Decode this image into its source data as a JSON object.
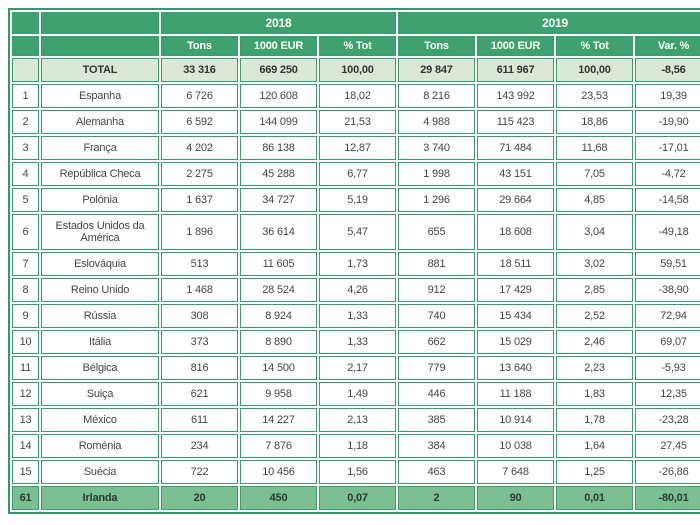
{
  "chart_data": {
    "type": "table",
    "description": "Country trade statistics table comparing 2018 and 2019 (tons, value in 1000 EUR, share of total, and variation percentage)",
    "year_groups": {
      "y2018": "2018",
      "y2019": "2019"
    },
    "sub_headers": {
      "tons": "Tons",
      "eur": "1000 EUR",
      "pct": "% Tot",
      "var": "Var. %"
    },
    "total": {
      "rank": "",
      "label": "TOTAL",
      "values": [
        "33 316",
        "669 250",
        "100,00",
        "29 847",
        "611 967",
        "100,00",
        "-8,56"
      ]
    },
    "rows": [
      {
        "rank": "1",
        "country": "Espanha",
        "values": [
          "6 726",
          "120 608",
          "18,02",
          "8 216",
          "143 992",
          "23,53",
          "19,39"
        ]
      },
      {
        "rank": "2",
        "country": "Alemanha",
        "values": [
          "6 592",
          "144 099",
          "21,53",
          "4 988",
          "115 423",
          "18,86",
          "-19,90"
        ]
      },
      {
        "rank": "3",
        "country": "França",
        "values": [
          "4 202",
          "86 138",
          "12,87",
          "3 740",
          "71 484",
          "11,68",
          "-17,01"
        ]
      },
      {
        "rank": "4",
        "country": "República Checa",
        "values": [
          "2 275",
          "45 288",
          "6,77",
          "1 998",
          "43 151",
          "7,05",
          "-4,72"
        ]
      },
      {
        "rank": "5",
        "country": "Polónia",
        "values": [
          "1 637",
          "34 727",
          "5,19",
          "1 296",
          "29 664",
          "4,85",
          "-14,58"
        ]
      },
      {
        "rank": "6",
        "country": "Estados Unidos da América",
        "values": [
          "1 896",
          "36 614",
          "5,47",
          "655",
          "18 608",
          "3,04",
          "-49,18"
        ],
        "tall": true
      },
      {
        "rank": "7",
        "country": "Eslováquia",
        "values": [
          "513",
          "11 605",
          "1,73",
          "881",
          "18 511",
          "3,02",
          "59,51"
        ]
      },
      {
        "rank": "8",
        "country": "Reino Unido",
        "values": [
          "1 468",
          "28 524",
          "4,26",
          "912",
          "17 429",
          "2,85",
          "-38,90"
        ]
      },
      {
        "rank": "9",
        "country": "Rússia",
        "values": [
          "308",
          "8 924",
          "1,33",
          "740",
          "15 434",
          "2,52",
          "72,94"
        ]
      },
      {
        "rank": "10",
        "country": "Itália",
        "values": [
          "373",
          "8 890",
          "1,33",
          "662",
          "15 029",
          "2,46",
          "69,07"
        ]
      },
      {
        "rank": "11",
        "country": "Bélgica",
        "values": [
          "816",
          "14 500",
          "2,17",
          "779",
          "13 640",
          "2,23",
          "-5,93"
        ]
      },
      {
        "rank": "12",
        "country": "Suiça",
        "values": [
          "621",
          "9 958",
          "1,49",
          "446",
          "11 188",
          "1,83",
          "12,35"
        ]
      },
      {
        "rank": "13",
        "country": "México",
        "values": [
          "611",
          "14 227",
          "2,13",
          "385",
          "10 914",
          "1,78",
          "-23,28"
        ]
      },
      {
        "rank": "14",
        "country": "Roménia",
        "values": [
          "234",
          "7 876",
          "1,18",
          "384",
          "10 038",
          "1,64",
          "27,45"
        ]
      },
      {
        "rank": "15",
        "country": "Suécia",
        "values": [
          "722",
          "10 456",
          "1,56",
          "463",
          "7 648",
          "1,25",
          "-26,86"
        ]
      },
      {
        "rank": "61",
        "country": "Irlanda",
        "values": [
          "20",
          "450",
          "0,07",
          "2",
          "90",
          "0,01",
          "-80,01"
        ],
        "highlight": true
      }
    ],
    "colors": {
      "header_green": "#3ea16f",
      "border_green": "#3a9c6d",
      "total_row_bg": "#dbe8d8",
      "highlight_row_bg": "#7cbf93",
      "header_text": "#ffffff",
      "body_text": "#454545"
    },
    "layout": {
      "grid": true,
      "number_format": "space thousands separator, comma decimals"
    }
  }
}
